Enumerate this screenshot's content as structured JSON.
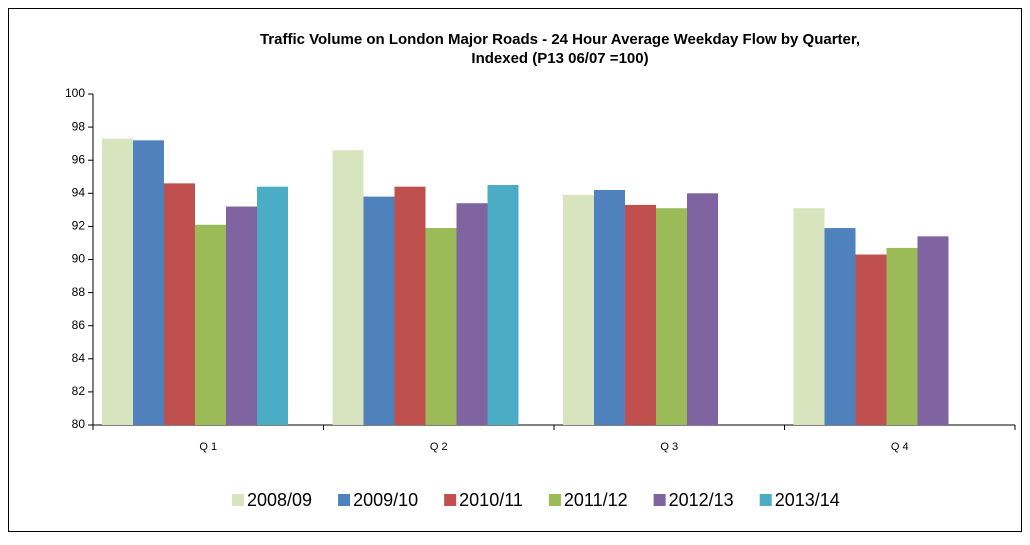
{
  "chart_data": {
    "type": "bar",
    "title": [
      "Traffic Volume on London Major Roads  - 24 Hour Average Weekday  Flow by Quarter,",
      "Indexed (P13 06/07 =100)"
    ],
    "categories": [
      "Q 1",
      "Q 2",
      "Q 3",
      "Q 4"
    ],
    "series": [
      {
        "name": "2008/09",
        "color": "#d7e4bd",
        "values": [
          97.3,
          96.6,
          93.9,
          93.1
        ]
      },
      {
        "name": "2009/10",
        "color": "#4f81bd",
        "values": [
          97.2,
          93.8,
          94.2,
          91.9
        ]
      },
      {
        "name": "2010/11",
        "color": "#c0504d",
        "values": [
          94.6,
          94.4,
          93.3,
          90.3
        ]
      },
      {
        "name": "2011/12",
        "color": "#9bbb59",
        "values": [
          92.1,
          91.9,
          93.1,
          90.7
        ]
      },
      {
        "name": "2012/13",
        "color": "#8064a2",
        "values": [
          93.2,
          93.4,
          94.0,
          91.4
        ]
      },
      {
        "name": "2013/14",
        "color": "#4bacc6",
        "values": [
          94.4,
          94.5,
          null,
          null
        ]
      }
    ],
    "ylim": [
      80,
      100
    ],
    "yticks": [
      80,
      82,
      84,
      86,
      88,
      90,
      92,
      94,
      96,
      98,
      100
    ],
    "grid": false,
    "legend": "bottom"
  }
}
